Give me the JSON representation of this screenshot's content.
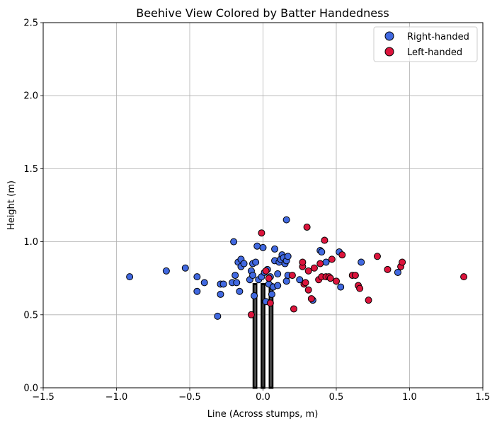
{
  "chart_data": {
    "type": "scatter",
    "title": "Beehive View Colored by Batter Handedness",
    "xlabel": "Line (Across stumps, m)",
    "ylabel": "Height (m)",
    "xlim": [
      -1.5,
      1.5
    ],
    "ylim": [
      0.0,
      2.5
    ],
    "xticks": [
      -1.5,
      -1.0,
      -0.5,
      0.0,
      0.5,
      1.0,
      1.5
    ],
    "yticks": [
      0.0,
      0.5,
      1.0,
      1.5,
      2.0,
      2.5
    ],
    "xtick_labels": [
      "−1.5",
      "−1.0",
      "−0.5",
      "0.0",
      "0.5",
      "1.0",
      "1.5"
    ],
    "ytick_labels": [
      "0.0",
      "0.5",
      "1.0",
      "1.5",
      "2.0",
      "2.5"
    ],
    "grid": true,
    "legend_position": "top-right",
    "stumps": {
      "x": [
        -0.055,
        0.0,
        0.055
      ],
      "height": 0.71,
      "width": 0.018
    },
    "series": [
      {
        "name": "Right-handed",
        "color": "#4169e1",
        "points": [
          [
            -0.91,
            0.76
          ],
          [
            -0.66,
            0.8
          ],
          [
            -0.53,
            0.82
          ],
          [
            -0.45,
            0.76
          ],
          [
            -0.45,
            0.66
          ],
          [
            -0.4,
            0.72
          ],
          [
            -0.31,
            0.49
          ],
          [
            -0.29,
            0.64
          ],
          [
            -0.29,
            0.71
          ],
          [
            -0.27,
            0.71
          ],
          [
            -0.21,
            0.72
          ],
          [
            -0.2,
            1.0
          ],
          [
            -0.19,
            0.77
          ],
          [
            -0.18,
            0.72
          ],
          [
            -0.17,
            0.86
          ],
          [
            -0.16,
            0.66
          ],
          [
            -0.15,
            0.88
          ],
          [
            -0.15,
            0.83
          ],
          [
            -0.13,
            0.85
          ],
          [
            -0.09,
            0.74
          ],
          [
            -0.08,
            0.8
          ],
          [
            -0.07,
            0.85
          ],
          [
            -0.07,
            0.77
          ],
          [
            -0.06,
            0.63
          ],
          [
            -0.05,
            0.86
          ],
          [
            -0.04,
            0.97
          ],
          [
            -0.03,
            0.74
          ],
          [
            -0.01,
            0.76
          ],
          [
            0.0,
            0.96
          ],
          [
            0.01,
            0.79
          ],
          [
            0.02,
            0.59
          ],
          [
            0.03,
            0.81
          ],
          [
            0.04,
            0.71
          ],
          [
            0.05,
            0.76
          ],
          [
            0.06,
            0.64
          ],
          [
            0.07,
            0.69
          ],
          [
            0.08,
            0.87
          ],
          [
            0.08,
            0.95
          ],
          [
            0.1,
            0.7
          ],
          [
            0.1,
            0.78
          ],
          [
            0.11,
            0.86
          ],
          [
            0.12,
            0.88
          ],
          [
            0.13,
            0.91
          ],
          [
            0.14,
            0.89
          ],
          [
            0.15,
            0.85
          ],
          [
            0.16,
            1.15
          ],
          [
            0.16,
            0.87
          ],
          [
            0.16,
            0.73
          ],
          [
            0.17,
            0.9
          ],
          [
            0.17,
            0.77
          ],
          [
            0.25,
            0.74
          ],
          [
            0.34,
            0.6
          ],
          [
            0.39,
            0.94
          ],
          [
            0.4,
            0.93
          ],
          [
            0.43,
            0.86
          ],
          [
            0.52,
            0.93
          ],
          [
            0.53,
            0.69
          ],
          [
            0.67,
            0.86
          ],
          [
            0.92,
            0.79
          ]
        ]
      },
      {
        "name": "Left-handed",
        "color": "#dc143c",
        "points": [
          [
            -0.08,
            0.5
          ],
          [
            -0.01,
            1.06
          ],
          [
            0.02,
            0.8
          ],
          [
            0.04,
            0.75
          ],
          [
            0.05,
            0.58
          ],
          [
            0.2,
            0.77
          ],
          [
            0.21,
            0.54
          ],
          [
            0.27,
            0.83
          ],
          [
            0.27,
            0.86
          ],
          [
            0.28,
            0.71
          ],
          [
            0.29,
            0.72
          ],
          [
            0.3,
            1.1
          ],
          [
            0.31,
            0.67
          ],
          [
            0.31,
            0.8
          ],
          [
            0.33,
            0.61
          ],
          [
            0.35,
            0.82
          ],
          [
            0.38,
            0.74
          ],
          [
            0.39,
            0.85
          ],
          [
            0.4,
            0.76
          ],
          [
            0.42,
            1.01
          ],
          [
            0.43,
            0.76
          ],
          [
            0.45,
            0.76
          ],
          [
            0.46,
            0.75
          ],
          [
            0.47,
            0.88
          ],
          [
            0.5,
            0.73
          ],
          [
            0.54,
            0.91
          ],
          [
            0.61,
            0.77
          ],
          [
            0.63,
            0.77
          ],
          [
            0.65,
            0.7
          ],
          [
            0.66,
            0.68
          ],
          [
            0.72,
            0.6
          ],
          [
            0.78,
            0.9
          ],
          [
            0.85,
            0.81
          ],
          [
            0.94,
            0.83
          ],
          [
            0.95,
            0.86
          ],
          [
            1.37,
            0.76
          ]
        ]
      }
    ]
  }
}
